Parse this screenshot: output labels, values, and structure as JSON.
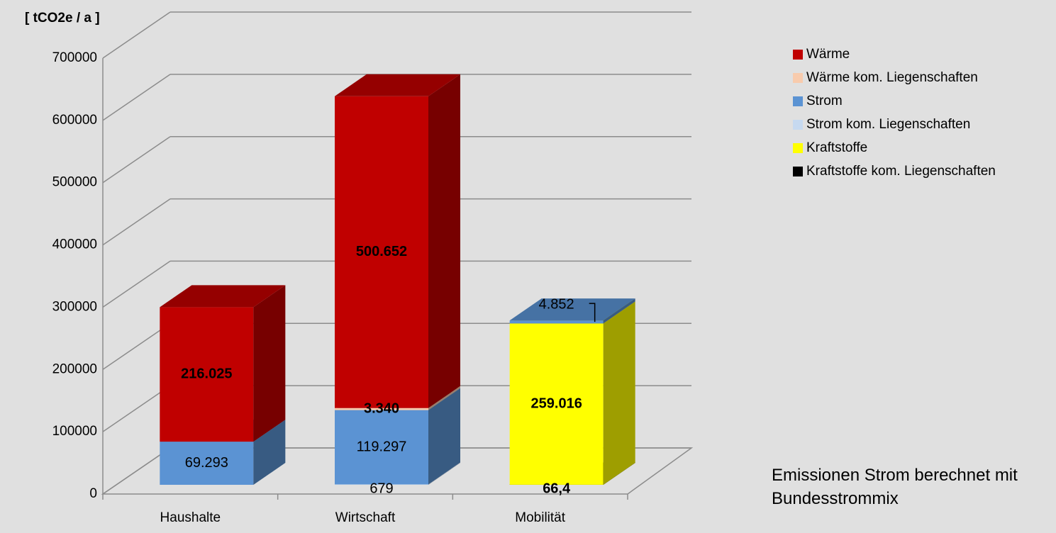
{
  "chart_data": {
    "type": "bar3d_stacked",
    "title": "[ tCO2e / a ]",
    "annotation": "Emissionen Strom berechnet mit Bundesstrommix",
    "categories": [
      "Haushalte",
      "Wirtschaft",
      "Mobilität"
    ],
    "series": [
      {
        "name": "Wärme",
        "color": "#c00000",
        "values": [
          216025,
          500652,
          null
        ],
        "value_labels": [
          "216.025",
          "500.652",
          null
        ]
      },
      {
        "name": "Wärme kom. Liegenschaften",
        "color": "#f8cbad",
        "values": [
          null,
          3340,
          null
        ],
        "value_labels": [
          null,
          "3.340",
          null
        ]
      },
      {
        "name": "Strom",
        "color": "#5b93d3",
        "values": [
          69293,
          119297,
          4852
        ],
        "value_labels": [
          "69.293",
          "119.297",
          "4.852"
        ]
      },
      {
        "name": "Strom kom. Liegenschaften",
        "color": "#c6d9f0",
        "values": [
          null,
          679,
          null
        ],
        "value_labels": [
          null,
          "679",
          null
        ]
      },
      {
        "name": "Kraftstoffe",
        "color": "#ffff00",
        "values": [
          null,
          null,
          259016
        ],
        "value_labels": [
          null,
          null,
          "259.016"
        ]
      },
      {
        "name": "Kraftstoffe kom. Liegenschaften",
        "color": "#000000",
        "values": [
          null,
          null,
          66.4
        ],
        "value_labels": [
          null,
          null,
          "66,4"
        ]
      }
    ],
    "ylim": [
      0,
      700000
    ],
    "yticks": [
      0,
      100000,
      200000,
      300000,
      400000,
      500000,
      600000,
      700000
    ],
    "grid": true,
    "legend": "right"
  }
}
